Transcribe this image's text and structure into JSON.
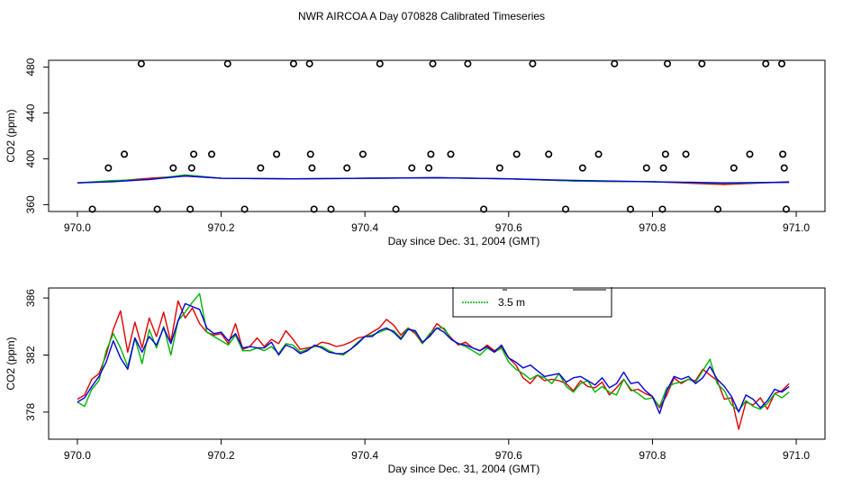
{
  "title": "NWR AIRCOA A  Day 070828  Calibrated Timeseries",
  "colors": {
    "red": "#e00000",
    "green": "#00b400",
    "blue": "#0000e0",
    "black": "#000000"
  },
  "chart_data": [
    {
      "type": "line",
      "panel": "top",
      "title": "NWR AIRCOA A  Day 070828  Calibrated Timeseries",
      "xlabel": "Day since Dec. 31, 2004 (GMT)",
      "ylabel": "CO2 (ppm)",
      "xlim": [
        969.96,
        971.04
      ],
      "ylim": [
        354,
        486
      ],
      "xticks": [
        970.0,
        970.2,
        970.4,
        970.6,
        970.8,
        971.0
      ],
      "xtick_labels": [
        "970.0",
        "970.2",
        "970.4",
        "970.6",
        "970.8",
        "971.0"
      ],
      "yticks": [
        360,
        400,
        440,
        480
      ],
      "ytick_labels": [
        "360",
        "400",
        "440",
        "480"
      ],
      "lines": [
        {
          "name": "red",
          "color": "red",
          "x": [
            970.0,
            970.05,
            970.1,
            970.15,
            970.2,
            970.3,
            970.4,
            970.5,
            970.6,
            970.7,
            970.8,
            970.9,
            970.99
          ],
          "y": [
            379,
            380.5,
            383,
            385,
            383,
            382.5,
            383,
            383.5,
            382.5,
            380.5,
            380,
            377.5,
            380
          ]
        },
        {
          "name": "green",
          "color": "green",
          "x": [
            970.0,
            970.05,
            970.1,
            970.15,
            970.2,
            970.3,
            970.4,
            970.5,
            970.6,
            970.7,
            970.8,
            970.9,
            970.99
          ],
          "y": [
            379,
            381,
            382,
            386,
            383,
            382.5,
            383,
            383.5,
            382.5,
            380.5,
            380,
            378.5,
            379.5
          ]
        },
        {
          "name": "blue",
          "color": "blue",
          "x": [
            970.0,
            970.05,
            970.1,
            970.15,
            970.2,
            970.3,
            970.4,
            970.5,
            970.6,
            970.7,
            970.8,
            970.9,
            970.99
          ],
          "y": [
            379,
            380,
            382,
            385,
            383,
            382.5,
            383,
            383.5,
            382.5,
            381,
            380,
            379,
            379.5
          ]
        }
      ],
      "points": {
        "name": "circles",
        "color": "black",
        "x": [
          970.0208,
          970.0431,
          970.0653,
          970.0889,
          970.1111,
          970.1333,
          970.1569,
          970.159,
          970.1618,
          970.1868,
          970.209,
          970.2326,
          970.2549,
          970.2771,
          970.3007,
          970.3229,
          970.3243,
          970.3264,
          970.3292,
          970.3528,
          970.375,
          970.3972,
          970.4208,
          970.4431,
          970.4653,
          970.4889,
          970.4917,
          970.4944,
          970.5194,
          970.5431,
          970.5653,
          970.5875,
          970.6111,
          970.6333,
          970.6556,
          970.6792,
          970.7028,
          970.725,
          970.7472,
          970.7694,
          970.7917,
          970.8139,
          970.8153,
          970.8181,
          970.8208,
          970.8465,
          970.8688,
          970.891,
          970.9132,
          970.9354,
          970.9576,
          970.9799,
          970.9813,
          970.9833,
          970.9861
        ],
        "y": [
          356,
          392,
          404,
          483,
          356,
          392,
          356,
          392,
          404,
          404,
          483,
          356,
          392,
          404,
          483,
          483,
          404,
          392,
          356,
          356,
          392,
          404,
          483,
          356,
          392,
          392,
          404,
          483,
          404,
          483,
          356,
          392,
          404,
          483,
          404,
          356,
          392,
          404,
          483,
          356,
          392,
          356,
          392,
          404,
          483,
          404,
          483,
          356,
          392,
          404,
          483,
          483,
          404,
          392,
          356
        ]
      }
    },
    {
      "type": "line",
      "panel": "bottom",
      "xlabel": "Day since Dec. 31, 2004 (GMT)",
      "ylabel": "CO2 (ppm)",
      "xlim": [
        969.96,
        971.04
      ],
      "ylim": [
        376.1,
        386.7
      ],
      "xticks": [
        970.0,
        970.2,
        970.4,
        970.6,
        970.8,
        971.0
      ],
      "xtick_labels": [
        "970.0",
        "970.2",
        "970.4",
        "970.6",
        "970.8",
        "971.0"
      ],
      "yticks": [
        378,
        382,
        386
      ],
      "ytick_labels": [
        "378",
        "382",
        "386"
      ],
      "legend": {
        "placement": "top-center, partially clipped",
        "entries": [
          {
            "label": "3.5 m",
            "color": "green"
          }
        ]
      },
      "series": [
        {
          "name": "red",
          "color": "red",
          "x": [
            970.0,
            970.01,
            970.02,
            970.03,
            970.04,
            970.05,
            970.06,
            970.07,
            970.08,
            970.09,
            970.1,
            970.11,
            970.12,
            970.13,
            970.14,
            970.15,
            970.16,
            970.17,
            970.18,
            970.19,
            970.2,
            970.21,
            970.22,
            970.23,
            970.24,
            970.25,
            970.26,
            970.27,
            970.28,
            970.29,
            970.3,
            970.31,
            970.32,
            970.33,
            970.34,
            970.35,
            970.36,
            970.37,
            970.38,
            970.39,
            970.4,
            970.41,
            970.42,
            970.43,
            970.44,
            970.45,
            970.46,
            970.47,
            970.48,
            970.49,
            970.5,
            970.51,
            970.52,
            970.53,
            970.54,
            970.55,
            970.56,
            970.57,
            970.58,
            970.59,
            970.6,
            970.61,
            970.62,
            970.63,
            970.64,
            970.65,
            970.66,
            970.67,
            970.68,
            970.69,
            970.7,
            970.71,
            970.72,
            970.73,
            970.74,
            970.75,
            970.76,
            970.77,
            970.78,
            970.79,
            970.8,
            970.81,
            970.82,
            970.83,
            970.84,
            970.85,
            970.86,
            970.87,
            970.88,
            970.89,
            970.9,
            970.91,
            970.92,
            970.93,
            970.94,
            970.95,
            970.96,
            970.97,
            970.98,
            970.99
          ],
          "y": [
            378.9,
            379.2,
            380.3,
            380.7,
            382.0,
            383.8,
            385.1,
            382.2,
            384.3,
            382.5,
            384.6,
            383.3,
            385.0,
            382.9,
            385.8,
            384.6,
            385.3,
            384.2,
            383.6,
            383.4,
            383.5,
            382.8,
            384.2,
            382.4,
            382.6,
            383.2,
            382.6,
            383.1,
            382.8,
            383.7,
            383.1,
            382.4,
            382.5,
            382.6,
            382.9,
            382.8,
            382.6,
            382.7,
            382.9,
            383.2,
            383.3,
            383.6,
            383.9,
            384.5,
            384.1,
            383.4,
            383.9,
            383.5,
            382.8,
            383.4,
            384.2,
            383.8,
            383.2,
            382.7,
            382.9,
            382.5,
            382.3,
            382.7,
            382.3,
            382.6,
            381.8,
            381.3,
            380.4,
            380.0,
            380.6,
            380.2,
            380.3,
            380.2,
            380.0,
            379.5,
            380.2,
            379.8,
            379.7,
            380.1,
            379.2,
            379.7,
            380.3,
            379.5,
            379.6,
            379.3,
            379.1,
            378.3,
            379.2,
            380.4,
            380.0,
            380.3,
            380.2,
            381.0,
            380.6,
            380.2,
            378.9,
            379.0,
            376.8,
            378.7,
            378.5,
            379.0,
            378.2,
            379.3,
            379.5,
            380.0
          ]
        },
        {
          "name": "green",
          "color": "green",
          "x": [
            970.0,
            970.01,
            970.02,
            970.03,
            970.04,
            970.05,
            970.06,
            970.07,
            970.08,
            970.09,
            970.1,
            970.11,
            970.12,
            970.13,
            970.14,
            970.15,
            970.16,
            970.17,
            970.18,
            970.19,
            970.2,
            970.21,
            970.22,
            970.23,
            970.24,
            970.25,
            970.26,
            970.27,
            970.28,
            970.29,
            970.3,
            970.31,
            970.32,
            970.33,
            970.34,
            970.35,
            970.36,
            970.37,
            970.38,
            970.39,
            970.4,
            970.41,
            970.42,
            970.43,
            970.44,
            970.45,
            970.46,
            970.47,
            970.48,
            970.49,
            970.5,
            970.51,
            970.52,
            970.53,
            970.54,
            970.55,
            970.56,
            970.57,
            970.58,
            970.59,
            970.6,
            970.61,
            970.62,
            970.63,
            970.64,
            970.65,
            970.66,
            970.67,
            970.68,
            970.69,
            970.7,
            970.71,
            970.72,
            970.73,
            970.74,
            970.75,
            970.76,
            970.77,
            970.78,
            970.79,
            970.8,
            970.81,
            970.82,
            970.83,
            970.84,
            970.85,
            970.86,
            970.87,
            970.88,
            970.89,
            970.9,
            970.91,
            970.92,
            970.93,
            970.94,
            970.95,
            970.96,
            970.97,
            970.98,
            970.99
          ],
          "y": [
            378.7,
            378.4,
            379.6,
            380.2,
            382.3,
            383.5,
            382.5,
            381.2,
            383.2,
            381.4,
            383.8,
            382.5,
            384.0,
            382.0,
            384.4,
            385.0,
            385.7,
            386.3,
            383.6,
            383.3,
            383.0,
            382.7,
            383.4,
            382.3,
            382.3,
            382.5,
            382.3,
            382.6,
            382.1,
            382.8,
            382.7,
            382.2,
            382.4,
            382.6,
            382.6,
            382.3,
            382.1,
            382.0,
            382.4,
            382.9,
            383.3,
            383.4,
            383.6,
            383.8,
            383.7,
            383.2,
            383.9,
            383.6,
            382.8,
            383.5,
            383.9,
            383.9,
            383.1,
            382.8,
            382.6,
            382.3,
            382.0,
            382.5,
            382.2,
            382.5,
            381.5,
            381.0,
            380.7,
            380.3,
            380.6,
            380.4,
            380.0,
            380.7,
            379.8,
            379.4,
            380.0,
            380.2,
            379.4,
            379.8,
            379.4,
            379.2,
            380.3,
            379.6,
            379.3,
            378.9,
            379.0,
            378.4,
            379.7,
            380.0,
            380.1,
            380.3,
            380.1,
            380.9,
            381.7,
            380.0,
            379.5,
            378.5,
            378.1,
            378.8,
            378.4,
            378.2,
            378.6,
            379.3,
            379.0,
            379.4
          ]
        },
        {
          "name": "blue",
          "color": "blue",
          "x": [
            970.0,
            970.01,
            970.02,
            970.03,
            970.04,
            970.05,
            970.06,
            970.07,
            970.08,
            970.09,
            970.1,
            970.11,
            970.12,
            970.13,
            970.14,
            970.15,
            970.16,
            970.17,
            970.18,
            970.19,
            970.2,
            970.21,
            970.22,
            970.23,
            970.24,
            970.25,
            970.26,
            970.27,
            970.28,
            970.29,
            970.3,
            970.31,
            970.32,
            970.33,
            970.34,
            970.35,
            970.36,
            970.37,
            970.38,
            970.39,
            970.4,
            970.41,
            970.42,
            970.43,
            970.44,
            970.45,
            970.46,
            970.47,
            970.48,
            970.49,
            970.5,
            970.51,
            970.52,
            970.53,
            970.54,
            970.55,
            970.56,
            970.57,
            970.58,
            970.59,
            970.6,
            970.61,
            970.62,
            970.63,
            970.64,
            970.65,
            970.66,
            970.67,
            970.68,
            970.69,
            970.7,
            970.71,
            970.72,
            970.73,
            970.74,
            970.75,
            970.76,
            970.77,
            970.78,
            970.79,
            970.8,
            970.81,
            970.82,
            970.83,
            970.84,
            970.85,
            970.86,
            970.87,
            970.88,
            970.89,
            970.9,
            970.91,
            970.92,
            970.93,
            970.94,
            970.95,
            970.96,
            970.97,
            970.98,
            970.99
          ],
          "y": [
            378.7,
            379.0,
            379.8,
            380.5,
            381.5,
            383.0,
            381.8,
            381.0,
            383.2,
            382.2,
            383.3,
            382.7,
            383.9,
            382.8,
            384.4,
            385.6,
            385.4,
            385.2,
            383.9,
            383.5,
            383.6,
            383.0,
            383.5,
            382.5,
            382.6,
            382.5,
            382.5,
            382.9,
            382.0,
            382.7,
            382.5,
            382.1,
            382.3,
            382.7,
            382.5,
            382.2,
            382.1,
            382.1,
            382.4,
            382.8,
            383.3,
            383.3,
            383.7,
            383.9,
            383.6,
            383.1,
            383.8,
            383.7,
            382.9,
            383.3,
            383.9,
            383.6,
            383.1,
            382.8,
            382.7,
            382.5,
            382.3,
            382.6,
            382.2,
            382.7,
            381.8,
            381.5,
            381.1,
            381.3,
            380.9,
            380.5,
            380.6,
            380.7,
            380.1,
            380.4,
            380.5,
            380.2,
            379.9,
            380.4,
            379.7,
            380.0,
            380.8,
            380.0,
            380.1,
            379.5,
            379.1,
            377.9,
            379.5,
            380.5,
            380.3,
            380.5,
            380.0,
            380.4,
            381.2,
            380.3,
            379.8,
            379.1,
            378.0,
            379.2,
            378.9,
            378.3,
            378.8,
            379.6,
            379.4,
            379.8
          ]
        }
      ]
    }
  ]
}
